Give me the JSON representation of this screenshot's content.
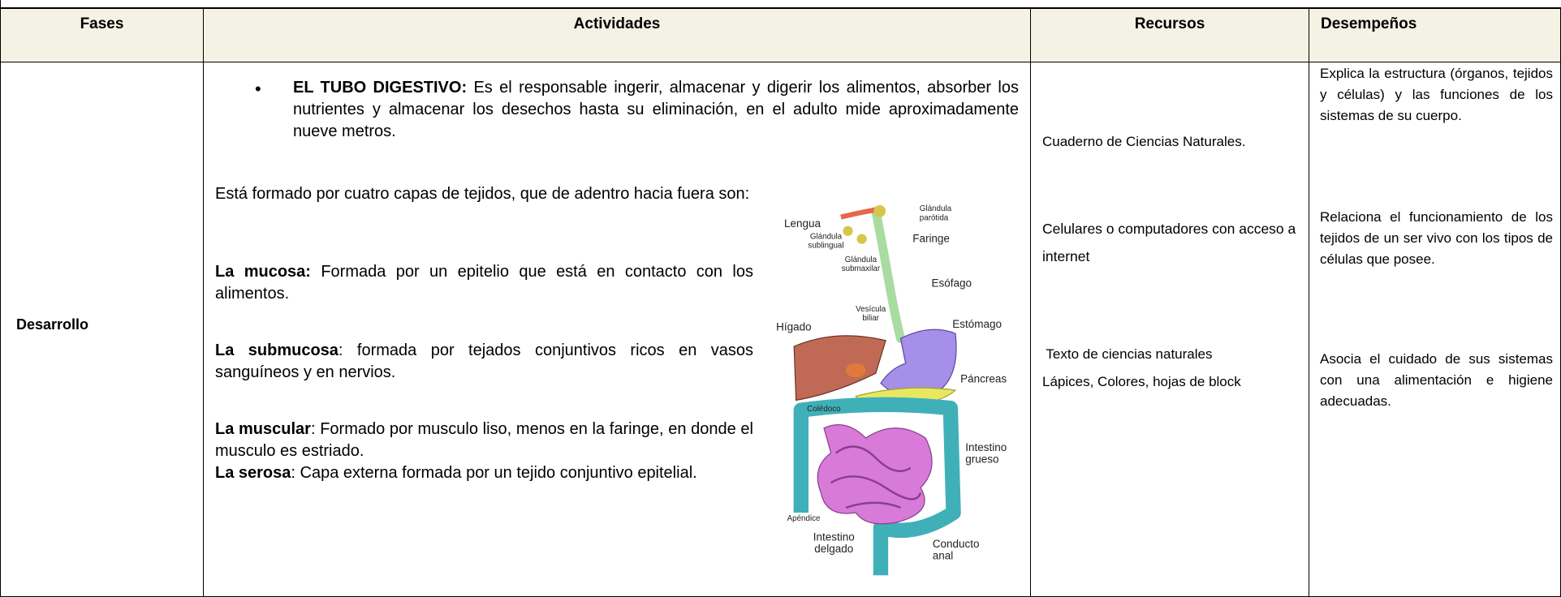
{
  "table": {
    "headers": [
      "Fases",
      "Actividades",
      "Recursos",
      "Desempeños"
    ],
    "row": {
      "fase": "Desarrollo",
      "actividades": {
        "bullet": {
          "term": "EL TUBO DIGESTIVO:",
          "text": " Es el responsable ingerir, almacenar y digerir los alimentos, absorber los nutrientes y almacenar los desechos hasta su eliminación, en el adulto mide aproximadamente nueve metros."
        },
        "intro": "Está formado por cuatro capas de tejidos, que de adentro hacia fuera son:",
        "layers": [
          {
            "term": "La mucosa:",
            "text": " Formada por un epitelio que está en contacto con los alimentos."
          },
          {
            "term": "La submucosa",
            "text": ": formada por tejados conjuntivos ricos en vasos sanguíneos y en nervios."
          },
          {
            "term": "La muscular",
            "text": ": Formado por musculo liso, menos en la faringe, en donde el musculo es estriado."
          },
          {
            "term": "La serosa",
            "text": ": Capa externa formada por un tejido conjuntivo epitelial."
          }
        ],
        "diagram": {
          "labels": [
            {
              "lines": [
                "Lengua"
              ]
            },
            {
              "lines": [
                "Glándula",
                "parótida"
              ]
            },
            {
              "lines": [
                "Faringe"
              ]
            },
            {
              "lines": [
                "Glándula",
                "sublingual"
              ]
            },
            {
              "lines": [
                "Glándula",
                "submaxilar"
              ]
            },
            {
              "lines": [
                "Esófago"
              ]
            },
            {
              "lines": [
                "Vesícula",
                "biliar"
              ]
            },
            {
              "lines": [
                "Hígado"
              ]
            },
            {
              "lines": [
                "Estómago"
              ]
            },
            {
              "lines": [
                "Páncreas"
              ]
            },
            {
              "lines": [
                "Colédoco"
              ]
            },
            {
              "lines": [
                "Intestino",
                "grueso"
              ]
            },
            {
              "lines": [
                "Apéndice"
              ]
            },
            {
              "lines": [
                "Intestino",
                "delgado"
              ]
            },
            {
              "lines": [
                "Conducto",
                "anal"
              ]
            }
          ]
        }
      },
      "recursos": [
        [
          "Cuaderno de Ciencias Naturales."
        ],
        [
          "Celulares o computadores con acceso a internet"
        ],
        [
          " Texto de ciencias naturales",
          "Lápices, Colores, hojas de block"
        ]
      ],
      "desempenos": [
        "Explica la estructura (órganos, tejidos y células) y las funciones de los sistemas de su cuerpo.",
        "Relaciona el funcionamiento de los tejidos de un ser vivo con los tipos de células que posee.",
        "Asocia el cuidado de sus sistemas con una alimentación e higiene adecuadas."
      ]
    }
  }
}
